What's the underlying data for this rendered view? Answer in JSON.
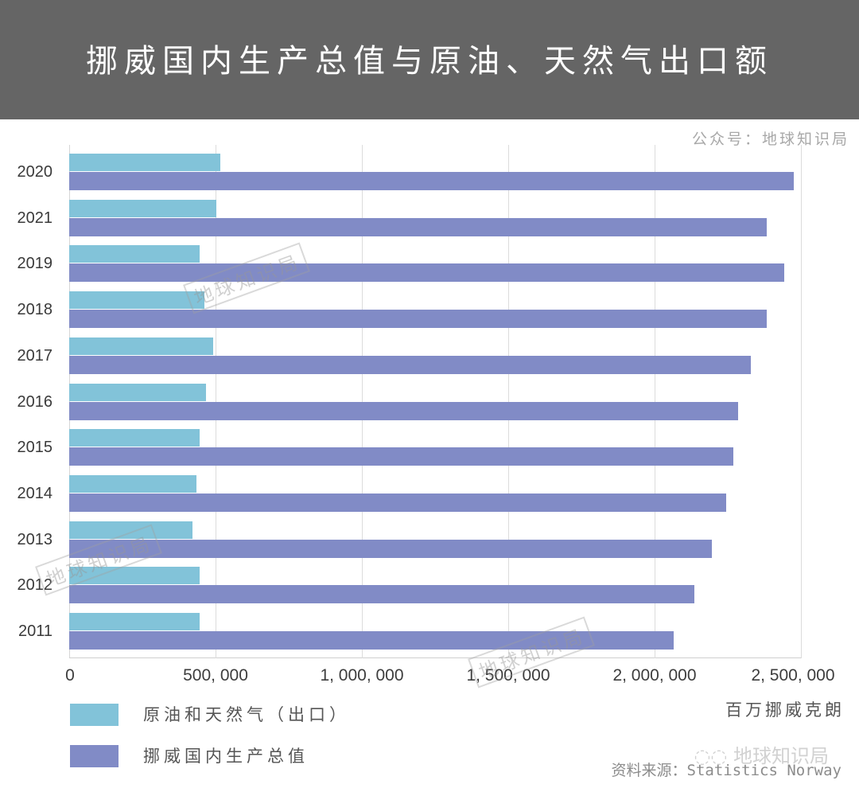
{
  "header": {
    "title": "挪威国内生产总值与原油、天然气出口额",
    "background": "#656565"
  },
  "account_label": "公众号：地球知识局",
  "x_unit": "百万挪威克朗",
  "source": "资料来源：Statistics Norway",
  "watermark_text": "地球知识局",
  "wechat_watermark": "地球知识局",
  "legend": [
    {
      "label": "原油和天然气（出口）",
      "color": "#82c3d9"
    },
    {
      "label": "挪威国内生产总值",
      "color": "#818bc6"
    }
  ],
  "chart_data": {
    "type": "bar",
    "orientation": "horizontal",
    "title": "挪威国内生产总值与原油、天然气出口额",
    "xlabel": "百万挪威克朗",
    "ylabel": "",
    "xlim": [
      0,
      2500000
    ],
    "x_ticks": [
      "0",
      "500, 000",
      "1, 000, 000",
      "1, 500, 000",
      "2, 000, 000",
      "2, 500, 000"
    ],
    "x_tick_values": [
      0,
      500000,
      1000000,
      1500000,
      2000000,
      2500000
    ],
    "grid": {
      "vertical": true,
      "horizontal": false
    },
    "legend_position": "bottom-left",
    "categories": [
      "2020",
      "2021",
      "2019",
      "2018",
      "2017",
      "2016",
      "2015",
      "2014",
      "2013",
      "2012",
      "2011"
    ],
    "series": [
      {
        "name": "原油和天然气（出口）",
        "color": "#82c3d9",
        "values": [
          516000,
          503000,
          446000,
          462000,
          492000,
          467000,
          446000,
          435000,
          421000,
          446000,
          446000
        ]
      },
      {
        "name": "挪威国内生产总值",
        "color": "#818bc6",
        "values": [
          2476000,
          2383000,
          2443000,
          2383000,
          2329000,
          2285000,
          2269000,
          2245000,
          2196000,
          2136000,
          2065000
        ]
      }
    ]
  }
}
